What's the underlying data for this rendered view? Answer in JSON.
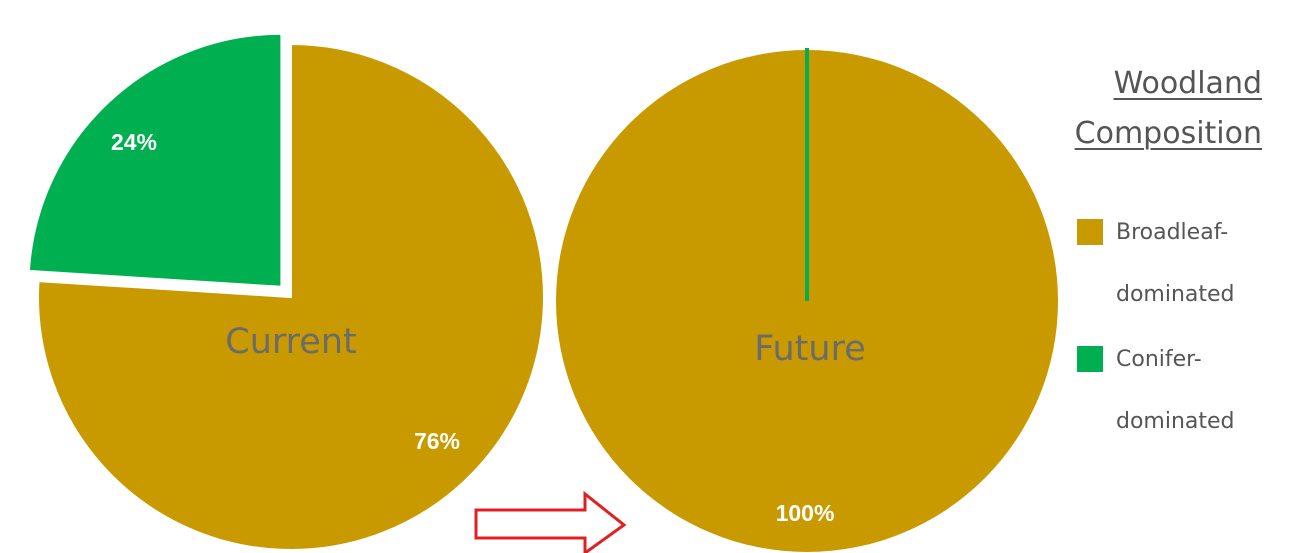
{
  "legend": {
    "title_line1": "Woodland",
    "title_line2": "Composition",
    "entries": [
      {
        "line1": "Broadleaf-",
        "line2": "dominated",
        "color": "#C99A00"
      },
      {
        "line1": "Conifer-",
        "line2": "dominated",
        "color": "#00B050"
      }
    ]
  },
  "arrow": {
    "color": "#E02020"
  },
  "chart_data": [
    {
      "type": "pie",
      "title": "Current",
      "slices": [
        {
          "label": "Broadleaf-dominated",
          "value": 76,
          "display": "76%",
          "color": "#C99A00"
        },
        {
          "label": "Conifer-dominated",
          "value": 24,
          "display": "24%",
          "color": "#00B050",
          "exploded": true
        }
      ]
    },
    {
      "type": "pie",
      "title": "Future",
      "slices": [
        {
          "label": "Broadleaf-dominated",
          "value": 100,
          "display": "100%",
          "color": "#C99A00"
        },
        {
          "label": "Conifer-dominated",
          "value": 0,
          "display": "",
          "color": "#00B050"
        }
      ]
    }
  ]
}
